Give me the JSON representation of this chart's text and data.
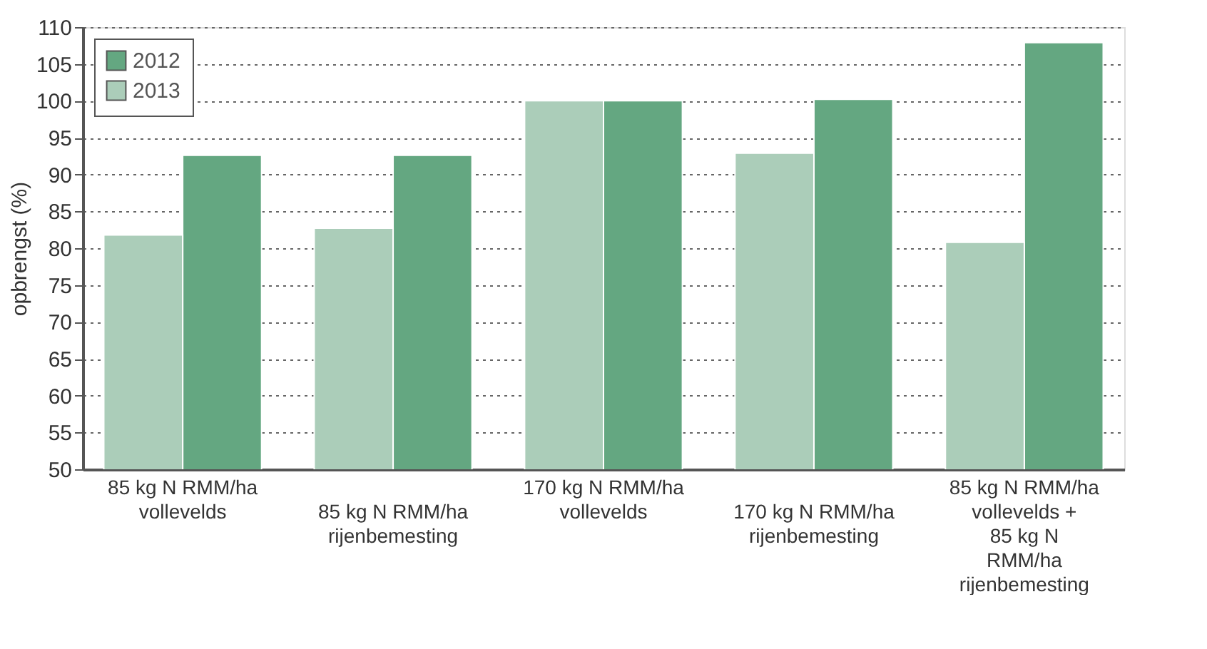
{
  "chart_data": {
    "type": "bar",
    "ylabel": "opbrengst (%)",
    "categories": [
      "85 kg N RMM/ha\nvollevelds",
      "85 kg N RMM/ha\nrijenbemesting",
      "170 kg N RMM/ha\nvollevelds",
      "170 kg N RMM/ha\nrijenbemesting",
      "85 kg N RMM/ha\nvollevelds +\n85 kg N\nRMM/ha\nrijenbemesting"
    ],
    "series": [
      {
        "name": "2012",
        "color": "#64a781",
        "values": [
          92.6,
          92.6,
          100,
          100.2,
          107.9
        ]
      },
      {
        "name": "2013",
        "color": "#abcdb9",
        "values": [
          81.8,
          82.7,
          100,
          92.9,
          80.8
        ]
      }
    ],
    "ylim": [
      50,
      110
    ],
    "yticks": [
      50,
      55,
      60,
      65,
      70,
      75,
      80,
      85,
      90,
      95,
      100,
      105,
      110
    ],
    "grid": "y",
    "legend": "top left"
  }
}
